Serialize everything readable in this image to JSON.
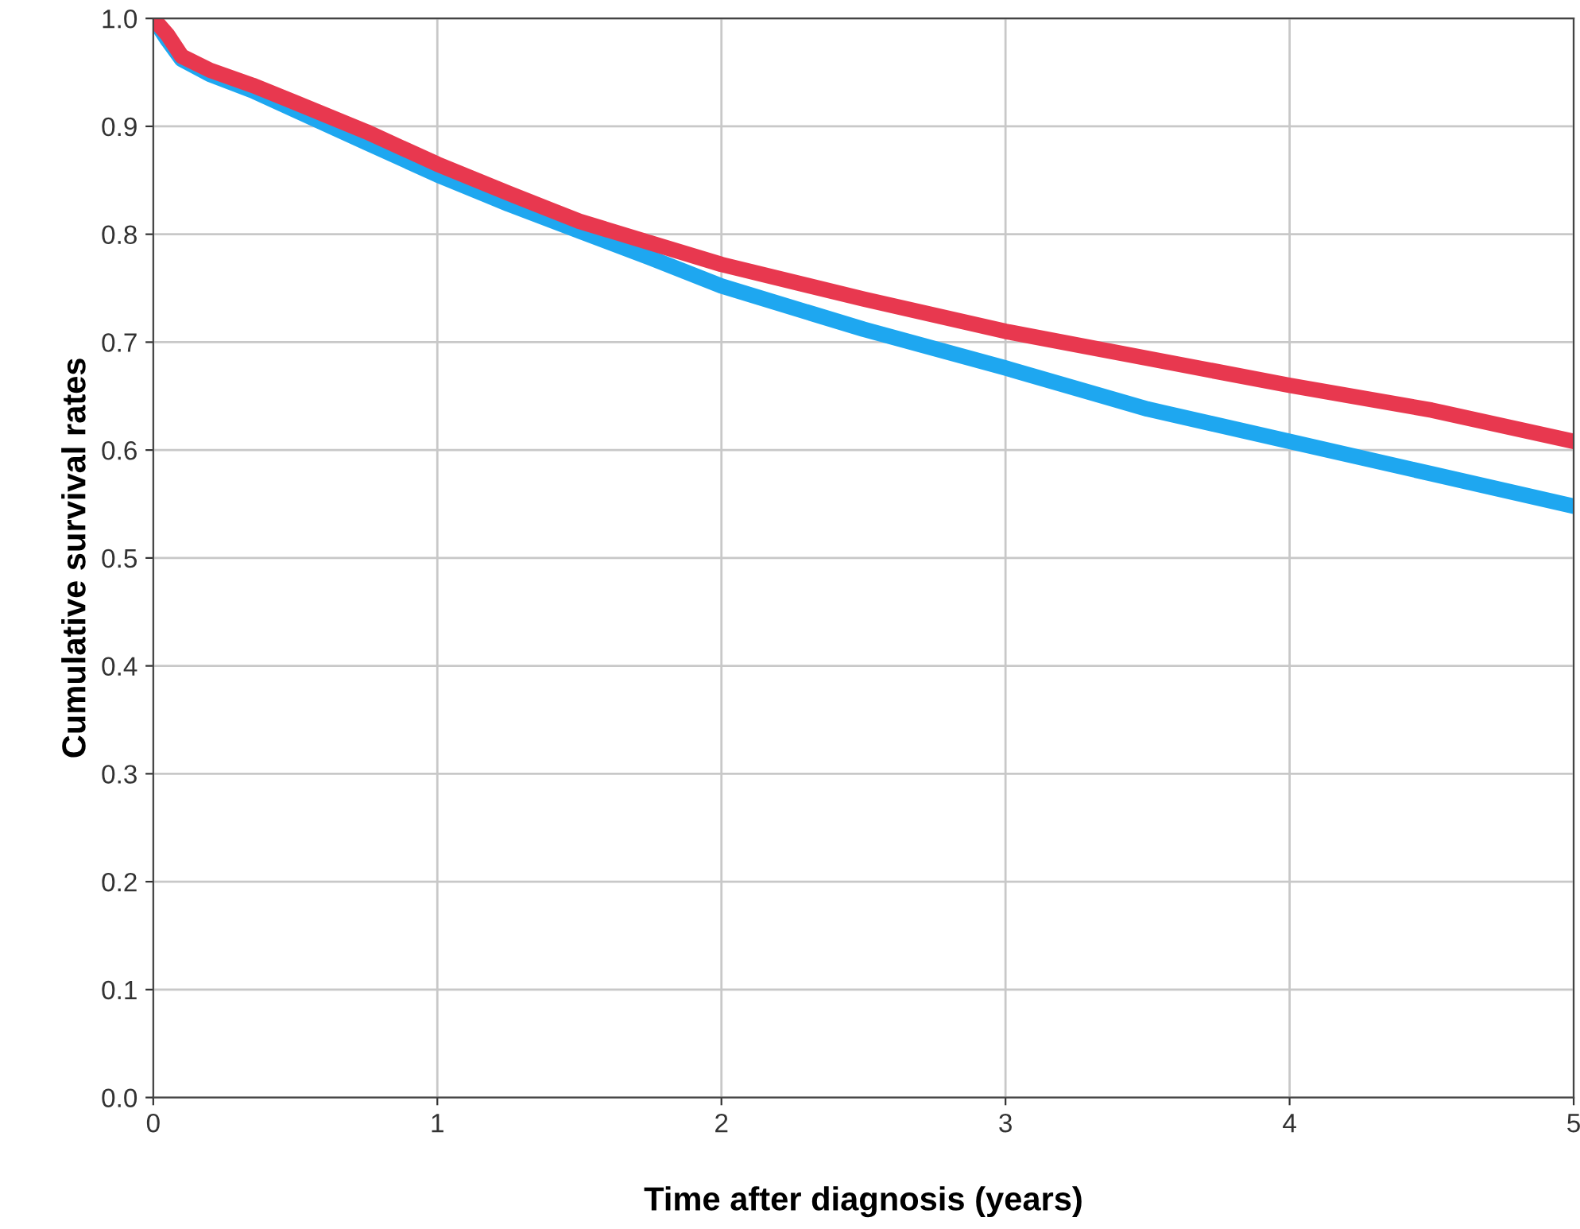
{
  "chart_data": {
    "type": "line",
    "xlabel": "Time after diagnosis (years)",
    "ylabel": "Cumulative survival rates",
    "xlim": [
      0,
      5
    ],
    "ylim": [
      0,
      1
    ],
    "xticks": [
      0,
      1,
      2,
      3,
      4,
      5
    ],
    "yticks": [
      {
        "value": 0,
        "label": "0.0"
      },
      {
        "value": 0.1,
        "label": "0.1"
      },
      {
        "value": 0.2,
        "label": "0.2"
      },
      {
        "value": 0.3,
        "label": "0.3"
      },
      {
        "value": 0.4,
        "label": "0.4"
      },
      {
        "value": 0.5,
        "label": "0.5"
      },
      {
        "value": 0.6,
        "label": "0.6"
      },
      {
        "value": 0.7,
        "label": "0.7"
      },
      {
        "value": 0.8,
        "label": "0.8"
      },
      {
        "value": 0.9,
        "label": "0.9"
      },
      {
        "value": 1,
        "label": "1.0"
      }
    ],
    "grid": true,
    "line_style": "solid",
    "series": [
      {
        "color": "#1ea7f0",
        "x": [
          0,
          0.05,
          0.1,
          0.2,
          0.35,
          0.5,
          0.75,
          1,
          1.25,
          1.5,
          1.75,
          2,
          2.5,
          3,
          3.5,
          4,
          4.5,
          5
        ],
        "values": [
          1.0,
          0.98,
          0.962,
          0.948,
          0.933,
          0.915,
          0.885,
          0.855,
          0.828,
          0.803,
          0.778,
          0.752,
          0.712,
          0.676,
          0.638,
          0.608,
          0.578,
          0.548
        ]
      },
      {
        "color": "#e8384f",
        "x": [
          0,
          0.05,
          0.1,
          0.2,
          0.35,
          0.5,
          0.75,
          1,
          1.25,
          1.5,
          1.75,
          2,
          2.5,
          3,
          3.5,
          4,
          4.5,
          5
        ],
        "values": [
          1.0,
          0.985,
          0.965,
          0.952,
          0.938,
          0.922,
          0.895,
          0.865,
          0.838,
          0.812,
          0.792,
          0.772,
          0.74,
          0.71,
          0.685,
          0.66,
          0.637,
          0.608
        ]
      }
    ]
  }
}
